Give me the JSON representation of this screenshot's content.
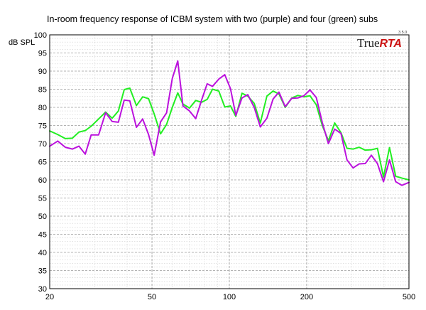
{
  "chart_data": {
    "type": "line",
    "title": "In-room frequency response of ICBM system with two (purple) and four (green) subs",
    "ylabel": "dB SPL",
    "xlabel": "",
    "x_scale": "log",
    "xlim": [
      20,
      500
    ],
    "ylim": [
      30,
      100
    ],
    "x_ticks": [
      {
        "value": 20,
        "label": "20"
      },
      {
        "value": 50,
        "label": "50"
      },
      {
        "value": 100,
        "label": "100"
      },
      {
        "value": 200,
        "label": "200"
      },
      {
        "value": 500,
        "label": "500"
      }
    ],
    "y_ticks": [
      30,
      35,
      40,
      45,
      50,
      55,
      60,
      65,
      70,
      75,
      80,
      85,
      90,
      95,
      100
    ],
    "grid": true,
    "brand": {
      "prefix": "True",
      "accent": "RTA",
      "version": "3.5.0"
    },
    "series": [
      {
        "color": "#22ee22",
        "x": [
          20,
          21.5,
          23,
          24.5,
          26,
          27.5,
          29,
          31,
          33,
          35,
          37,
          39,
          41,
          43.5,
          46,
          48.5,
          51,
          54,
          57,
          60,
          63,
          66,
          70,
          74,
          78,
          82,
          86,
          91,
          96,
          101,
          106,
          112,
          118,
          125,
          132,
          140,
          148,
          156,
          165,
          175,
          185,
          195,
          206,
          218,
          230,
          243,
          257,
          272,
          287,
          303,
          320,
          338,
          357,
          377,
          398,
          420,
          444,
          469,
          500
        ],
        "y": [
          73.5,
          72.5,
          71.4,
          71.5,
          73.2,
          73.6,
          74.8,
          76.8,
          78.7,
          77.0,
          79.0,
          84.9,
          85.3,
          80.5,
          82.9,
          82.4,
          78.2,
          72.7,
          75.3,
          80.0,
          84.0,
          80.9,
          79.8,
          81.9,
          81.4,
          82.2,
          85.0,
          84.5,
          80.1,
          80.4,
          77.5,
          83.9,
          83.1,
          81.1,
          75.7,
          83.1,
          84.5,
          83.7,
          80.0,
          82.6,
          83.3,
          82.9,
          83.2,
          80.7,
          75.0,
          70.8,
          75.7,
          73.0,
          68.7,
          68.5,
          69.0,
          68.2,
          68.3,
          68.7,
          60.8,
          68.9,
          61.0,
          60.5,
          60.0
        ]
      },
      {
        "color": "#bb11dd",
        "x": [
          20,
          21.5,
          23,
          24.5,
          26,
          27.5,
          29,
          31,
          33,
          35,
          37,
          39,
          41,
          43.5,
          46,
          48.5,
          51,
          54,
          57,
          60,
          63,
          66,
          70,
          74,
          78,
          82,
          86,
          91,
          96,
          101,
          106,
          112,
          118,
          125,
          132,
          140,
          148,
          156,
          165,
          175,
          185,
          195,
          206,
          218,
          230,
          243,
          257,
          272,
          287,
          303,
          320,
          338,
          357,
          377,
          398,
          420,
          444,
          469,
          500
        ],
        "y": [
          69.3,
          70.7,
          69.0,
          68.5,
          69.3,
          67.1,
          72.4,
          72.4,
          78.5,
          76.1,
          75.9,
          82.0,
          81.8,
          74.5,
          76.8,
          72.5,
          66.8,
          76.0,
          78.5,
          88.0,
          92.8,
          80.4,
          79.0,
          76.9,
          82.0,
          86.5,
          85.8,
          87.8,
          89.0,
          85.2,
          77.8,
          82.6,
          83.5,
          80.0,
          74.6,
          77.0,
          82.3,
          84.2,
          80.2,
          82.5,
          82.6,
          83.2,
          84.8,
          82.7,
          75.8,
          70.0,
          74.0,
          72.8,
          65.5,
          63.3,
          64.4,
          64.5,
          66.8,
          64.5,
          59.5,
          65.5,
          59.5,
          58.5,
          59.3
        ]
      }
    ]
  }
}
